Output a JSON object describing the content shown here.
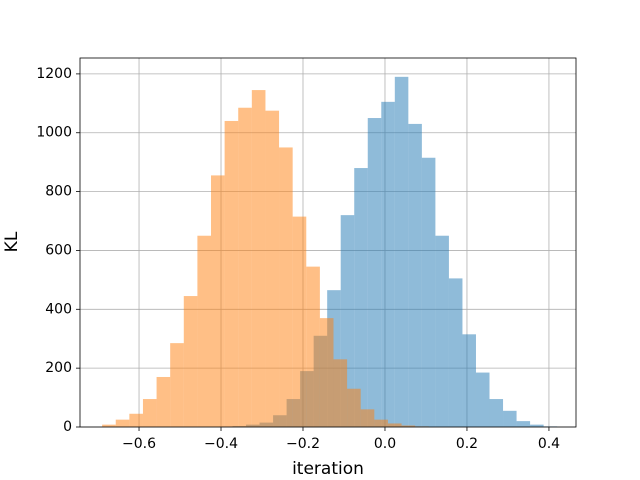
{
  "chart_data": {
    "type": "histogram",
    "xlabel": "iteration",
    "ylabel": "KL",
    "series": [
      {
        "color": "#1f77b4",
        "opacity": 0.5,
        "bins": [
          -0.405,
          -0.372,
          -0.339,
          -0.306,
          -0.273,
          -0.24,
          -0.207,
          -0.174,
          -0.141,
          -0.108,
          -0.075,
          -0.042,
          -0.009,
          0.024,
          0.057,
          0.09,
          0.123,
          0.156,
          0.189,
          0.222,
          0.255,
          0.288,
          0.321,
          0.354,
          0.387,
          0.42
        ],
        "values": [
          1,
          3,
          8,
          15,
          40,
          95,
          190,
          310,
          465,
          720,
          880,
          1050,
          1105,
          1190,
          1030,
          915,
          650,
          505,
          315,
          185,
          95,
          55,
          20,
          8,
          2
        ]
      },
      {
        "color": "#ff7f0e",
        "opacity": 0.5,
        "bins": [
          -0.69,
          -0.6568,
          -0.6236,
          -0.5904,
          -0.5572,
          -0.524,
          -0.4908,
          -0.4576,
          -0.4244,
          -0.3912,
          -0.358,
          -0.3248,
          -0.2916,
          -0.2584,
          -0.2252,
          -0.192,
          -0.1588,
          -0.1256,
          -0.0924,
          -0.0592,
          -0.026,
          0.0072,
          0.0404,
          0.0736,
          0.1068
        ],
        "values": [
          8,
          25,
          45,
          95,
          170,
          285,
          445,
          650,
          855,
          1040,
          1085,
          1145,
          1075,
          950,
          715,
          545,
          370,
          230,
          130,
          60,
          25,
          12,
          5,
          2
        ]
      }
    ],
    "xlim": [
      -0.744,
      0.466
    ],
    "xticks": [
      {
        "value": -0.6,
        "label": "−0.6"
      },
      {
        "value": -0.4,
        "label": "−0.4"
      },
      {
        "value": -0.2,
        "label": "−0.2"
      },
      {
        "value": 0,
        "label": "0.0"
      },
      {
        "value": 0.2,
        "label": "0.2"
      },
      {
        "value": 0.4,
        "label": "0.4"
      }
    ],
    "ylim": [
      0,
      1254
    ],
    "yticks": [
      0,
      200,
      400,
      600,
      800,
      1000,
      1200
    ],
    "grid": true
  }
}
